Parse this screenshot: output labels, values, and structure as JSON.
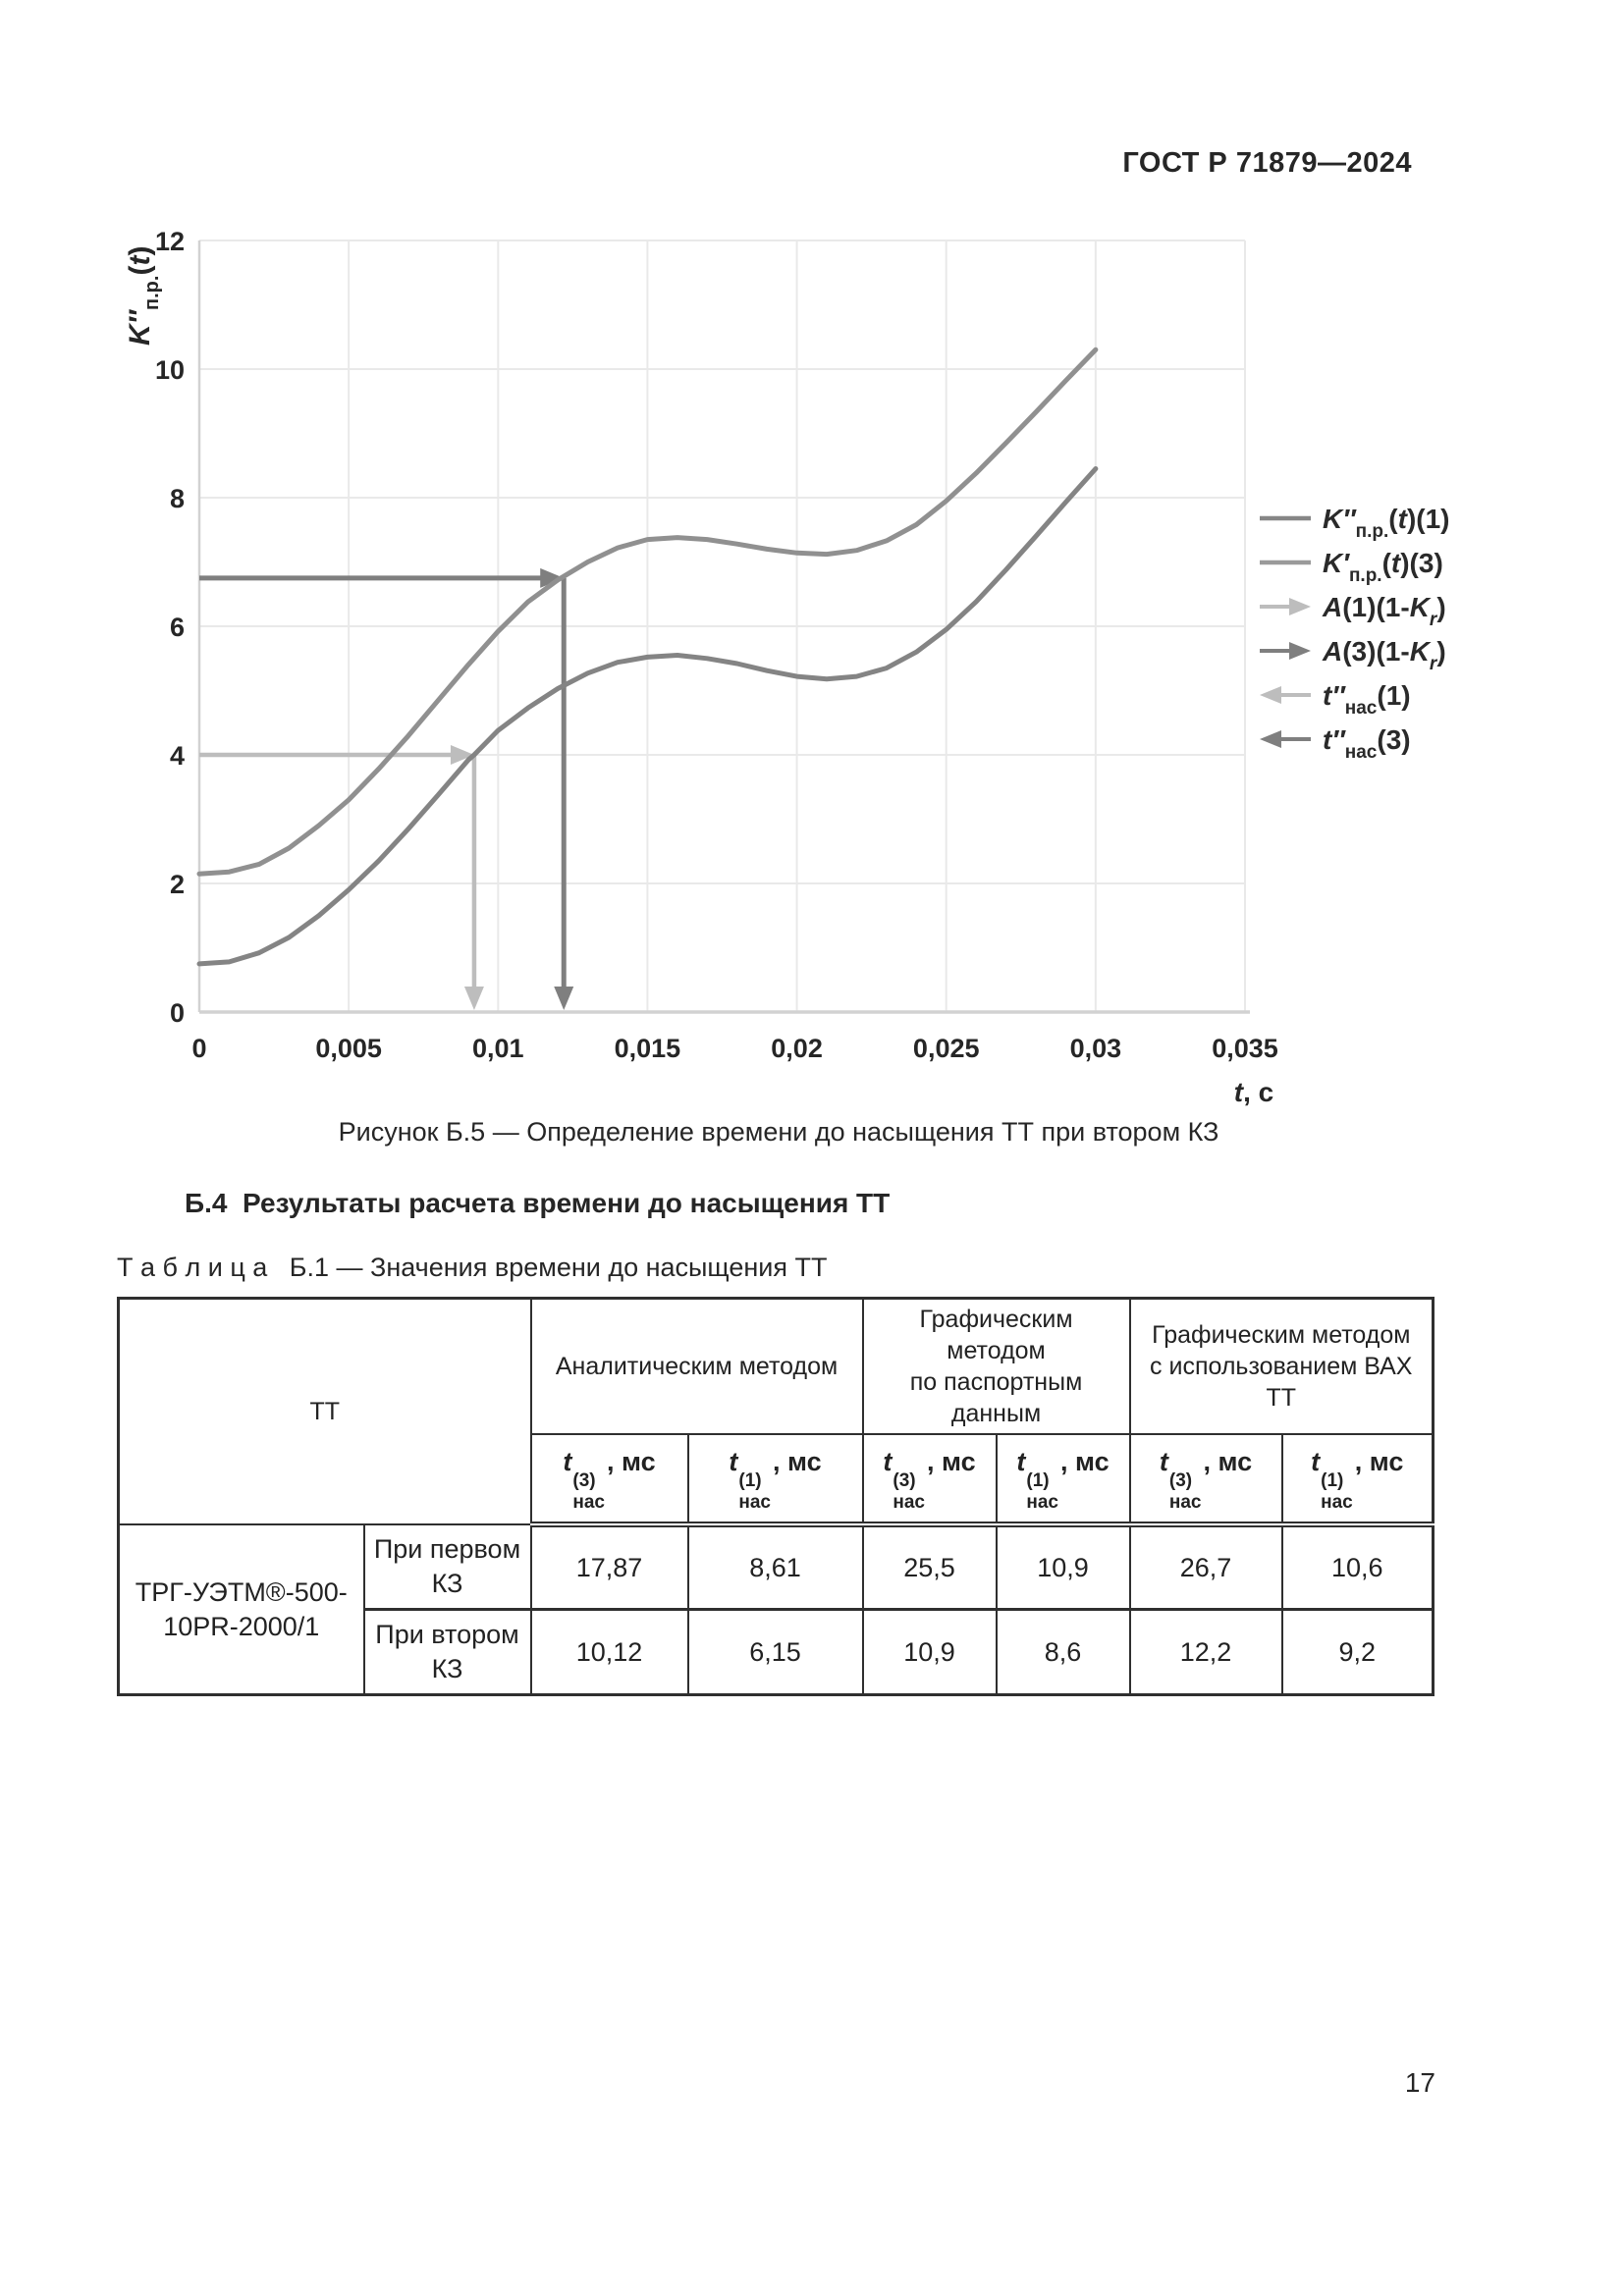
{
  "page": {
    "header_title": "ГОСТ Р 71879—2024",
    "figure_caption": "Рисунок Б.5 — Определение времени до насыщения ТТ при втором КЗ",
    "section_heading": "Б.4  Результаты расчета времени до насыщения ТТ",
    "table_caption": "Т а б л и ц а   Б.1 — Значения времени до насыщения ТТ",
    "page_number": "17"
  },
  "chart_data": {
    "type": "line",
    "title": "",
    "ylabel_parts": [
      {
        "t": "K″",
        "i": true
      },
      {
        "t": "п.р.",
        "sub": true
      },
      {
        "t": "("
      },
      {
        "t": "t",
        "i": true
      },
      {
        "t": ")"
      }
    ],
    "xlabel_parts": [
      {
        "t": "t",
        "i": true
      },
      {
        "t": ", с"
      }
    ],
    "xlim": [
      0,
      0.035
    ],
    "ylim": [
      0,
      12
    ],
    "xticks": [
      0,
      0.005,
      0.01,
      0.015,
      0.02,
      0.025,
      0.03,
      0.035
    ],
    "xtick_labels": [
      "0",
      "0,005",
      "0,01",
      "0,015",
      "0,02",
      "0,025",
      "0,03",
      "0,035"
    ],
    "yticks": [
      0,
      2,
      4,
      6,
      8,
      10,
      12
    ],
    "ytick_labels": [
      "0",
      "2",
      "4",
      "6",
      "8",
      "10",
      "12"
    ],
    "grid": true,
    "grid_color": "#e9e9e9",
    "axis_color": "#d2d2d2",
    "tick_text_color": "#262626",
    "legend_position": "right",
    "series": [
      {
        "name": "K″п.р.(t)(1)",
        "color": "#848484",
        "points": [
          [
            0,
            0.75
          ],
          [
            0.001,
            0.78
          ],
          [
            0.002,
            0.92
          ],
          [
            0.003,
            1.16
          ],
          [
            0.004,
            1.5
          ],
          [
            0.005,
            1.9
          ],
          [
            0.006,
            2.35
          ],
          [
            0.007,
            2.85
          ],
          [
            0.008,
            3.38
          ],
          [
            0.009,
            3.92
          ],
          [
            0.0092,
            4.0
          ],
          [
            0.01,
            4.38
          ],
          [
            0.011,
            4.73
          ],
          [
            0.012,
            5.03
          ],
          [
            0.013,
            5.27
          ],
          [
            0.014,
            5.44
          ],
          [
            0.015,
            5.52
          ],
          [
            0.016,
            5.55
          ],
          [
            0.017,
            5.5
          ],
          [
            0.018,
            5.42
          ],
          [
            0.019,
            5.31
          ],
          [
            0.02,
            5.22
          ],
          [
            0.021,
            5.18
          ],
          [
            0.022,
            5.22
          ],
          [
            0.023,
            5.35
          ],
          [
            0.024,
            5.6
          ],
          [
            0.025,
            5.95
          ],
          [
            0.026,
            6.38
          ],
          [
            0.027,
            6.88
          ],
          [
            0.028,
            7.4
          ],
          [
            0.029,
            7.93
          ],
          [
            0.03,
            8.45
          ]
        ]
      },
      {
        "name": "K′п.р.(t)(3)",
        "color": "#909090",
        "points": [
          [
            0,
            2.15
          ],
          [
            0.001,
            2.18
          ],
          [
            0.002,
            2.3
          ],
          [
            0.003,
            2.55
          ],
          [
            0.004,
            2.9
          ],
          [
            0.005,
            3.3
          ],
          [
            0.006,
            3.78
          ],
          [
            0.007,
            4.3
          ],
          [
            0.008,
            4.85
          ],
          [
            0.009,
            5.4
          ],
          [
            0.01,
            5.92
          ],
          [
            0.011,
            6.38
          ],
          [
            0.012,
            6.72
          ],
          [
            0.013,
            7.0
          ],
          [
            0.014,
            7.22
          ],
          [
            0.015,
            7.35
          ],
          [
            0.016,
            7.38
          ],
          [
            0.017,
            7.35
          ],
          [
            0.018,
            7.28
          ],
          [
            0.019,
            7.2
          ],
          [
            0.02,
            7.14
          ],
          [
            0.021,
            7.12
          ],
          [
            0.022,
            7.18
          ],
          [
            0.023,
            7.33
          ],
          [
            0.024,
            7.58
          ],
          [
            0.025,
            7.95
          ],
          [
            0.026,
            8.38
          ],
          [
            0.027,
            8.85
          ],
          [
            0.028,
            9.33
          ],
          [
            0.029,
            9.82
          ],
          [
            0.03,
            10.3
          ]
        ]
      }
    ],
    "annotations": [
      {
        "name": "A(1)(1-Kr)",
        "level": 4.0,
        "t_sat": 0.0092,
        "t_label": "t″нас(1)",
        "color": "#bdbdbd",
        "width": 4.5
      },
      {
        "name": "A(3)(1-Kr)",
        "level": 6.75,
        "t_sat": 0.0122,
        "t_label": "t″нас(3)",
        "color": "#7f7f7f",
        "width": 5
      }
    ],
    "legend": [
      {
        "swatch": "line",
        "color": "#868686",
        "segments": [
          {
            "t": "K″",
            "i": true
          },
          {
            "t": "п.р.",
            "sub": true
          },
          {
            "t": "("
          },
          {
            "t": "t",
            "i": true
          },
          {
            "t": ")(1)"
          }
        ]
      },
      {
        "swatch": "line",
        "color": "#9a9a9a",
        "segments": [
          {
            "t": "K′",
            "i": true
          },
          {
            "t": "п.р.",
            "sub": true
          },
          {
            "t": "("
          },
          {
            "t": "t",
            "i": true
          },
          {
            "t": ")(3)"
          }
        ]
      },
      {
        "swatch": "arrow-right",
        "color": "#bdbdbd",
        "segments": [
          {
            "t": "A",
            "i": true
          },
          {
            "t": "(1)(1-"
          },
          {
            "t": "K",
            "i": true
          },
          {
            "t": "r",
            "i": true,
            "sub": true
          },
          {
            "t": ")"
          }
        ]
      },
      {
        "swatch": "arrow-right",
        "color": "#7f7f7f",
        "segments": [
          {
            "t": "A",
            "i": true
          },
          {
            "t": "(3)(1-"
          },
          {
            "t": "K",
            "i": true
          },
          {
            "t": "r",
            "i": true,
            "sub": true
          },
          {
            "t": ")"
          }
        ]
      },
      {
        "swatch": "arrow-left",
        "color": "#bdbdbd",
        "segments": [
          {
            "t": "t″",
            "i": true
          },
          {
            "t": "нас",
            "sub": true
          },
          {
            "t": "(1)"
          }
        ]
      },
      {
        "swatch": "arrow-left",
        "color": "#7f7f7f",
        "segments": [
          {
            "t": "t″",
            "i": true
          },
          {
            "t": "нас",
            "sub": true
          },
          {
            "t": "(3)"
          }
        ]
      }
    ]
  },
  "table": {
    "tt_header": "ТТ",
    "col_groups": [
      {
        "label": "Аналитическим методом"
      },
      {
        "label": "Графическим методом\nпо паспортным данным"
      },
      {
        "label": "Графическим методом\nс использованием ВАХ ТТ"
      }
    ],
    "subheaders": [
      {
        "base": "t",
        "sup": "(3)",
        "sub": "нас",
        "unit": ", мс"
      },
      {
        "base": "t",
        "sup": "(1)",
        "sub": "нас",
        "unit": ", мс"
      },
      {
        "base": "t",
        "sup": "(3)",
        "sub": "нас",
        "unit": ", мс"
      },
      {
        "base": "t",
        "sup": "(1)",
        "sub": "нас",
        "unit": ", мс"
      },
      {
        "base": "t",
        "sup": "(3)",
        "sub": "нас",
        "unit": ", мс"
      },
      {
        "base": "t",
        "sup": "(1)",
        "sub": "нас",
        "unit": ", мс"
      }
    ],
    "rows": [
      {
        "tt_lines": [
          "ТРГ-УЭТМ®-500-",
          "10PR-2000/1"
        ],
        "case": "При первом КЗ",
        "values": [
          "17,87",
          "8,61",
          "25,5",
          "10,9",
          "26,7",
          "10,6"
        ]
      },
      {
        "case": "При втором КЗ",
        "values": [
          "10,12",
          "6,15",
          "10,9",
          "8,6",
          "12,2",
          "9,2"
        ]
      }
    ]
  }
}
